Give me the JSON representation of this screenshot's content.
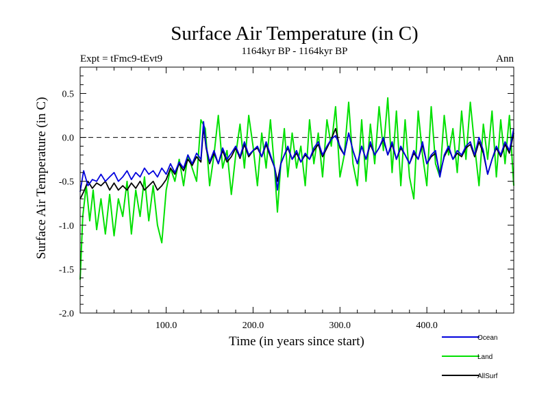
{
  "chart_data": {
    "type": "line",
    "title": "Surface Air Temperature (in C)",
    "subtitle": "1164kyr BP - 1164kyr BP",
    "left_label": "Expt = tFmc9-tEvt9",
    "right_label": "Ann",
    "xlabel": "Time (in years since start)",
    "ylabel": "Surface Air Temperature (in C)",
    "xlim": [
      1,
      500
    ],
    "ylim": [
      -2.0,
      0.8
    ],
    "x_ticks": [
      100,
      200,
      300,
      400
    ],
    "x_tick_labels": [
      "100.0",
      "200.0",
      "300.0",
      "400.0"
    ],
    "y_ticks": [
      -2.0,
      -1.5,
      -1.0,
      -0.5,
      0.0,
      0.5
    ],
    "y_tick_labels": [
      "-2.0",
      "-1.5",
      "-1.0",
      "-0.5",
      "0.0",
      "0.5"
    ],
    "reference_line": 0.0,
    "legend_position": "bottom-right",
    "series": [
      {
        "name": "Ocean",
        "color": "#0000dd",
        "points": [
          [
            1,
            -0.62
          ],
          [
            5,
            -0.38
          ],
          [
            10,
            -0.55
          ],
          [
            15,
            -0.48
          ],
          [
            20,
            -0.5
          ],
          [
            25,
            -0.42
          ],
          [
            30,
            -0.5
          ],
          [
            35,
            -0.45
          ],
          [
            40,
            -0.4
          ],
          [
            45,
            -0.5
          ],
          [
            50,
            -0.45
          ],
          [
            55,
            -0.38
          ],
          [
            60,
            -0.48
          ],
          [
            65,
            -0.4
          ],
          [
            70,
            -0.45
          ],
          [
            75,
            -0.35
          ],
          [
            80,
            -0.42
          ],
          [
            85,
            -0.38
          ],
          [
            90,
            -0.45
          ],
          [
            95,
            -0.35
          ],
          [
            100,
            -0.42
          ],
          [
            105,
            -0.3
          ],
          [
            110,
            -0.4
          ],
          [
            115,
            -0.28
          ],
          [
            120,
            -0.35
          ],
          [
            125,
            -0.2
          ],
          [
            130,
            -0.3
          ],
          [
            135,
            -0.18
          ],
          [
            140,
            -0.25
          ],
          [
            143,
            0.18
          ],
          [
            146,
            -0.1
          ],
          [
            150,
            -0.28
          ],
          [
            155,
            -0.15
          ],
          [
            160,
            -0.3
          ],
          [
            165,
            -0.12
          ],
          [
            170,
            -0.25
          ],
          [
            175,
            -0.18
          ],
          [
            180,
            -0.1
          ],
          [
            185,
            -0.22
          ],
          [
            190,
            -0.05
          ],
          [
            195,
            -0.2
          ],
          [
            200,
            -0.15
          ],
          [
            205,
            -0.1
          ],
          [
            210,
            -0.22
          ],
          [
            215,
            -0.05
          ],
          [
            220,
            -0.2
          ],
          [
            225,
            -0.35
          ],
          [
            228,
            -0.6
          ],
          [
            232,
            -0.3
          ],
          [
            236,
            -0.2
          ],
          [
            240,
            -0.1
          ],
          [
            245,
            -0.25
          ],
          [
            250,
            -0.15
          ],
          [
            255,
            -0.28
          ],
          [
            260,
            -0.18
          ],
          [
            265,
            -0.25
          ],
          [
            270,
            -0.12
          ],
          [
            275,
            -0.05
          ],
          [
            280,
            -0.2
          ],
          [
            285,
            -0.1
          ],
          [
            290,
            -0.02
          ],
          [
            295,
            0.02
          ],
          [
            300,
            -0.1
          ],
          [
            305,
            -0.2
          ],
          [
            310,
            0.05
          ],
          [
            315,
            -0.15
          ],
          [
            320,
            -0.3
          ],
          [
            325,
            -0.1
          ],
          [
            330,
            -0.25
          ],
          [
            335,
            -0.05
          ],
          [
            340,
            -0.2
          ],
          [
            345,
            -0.12
          ],
          [
            350,
            0.0
          ],
          [
            355,
            -0.2
          ],
          [
            360,
            -0.05
          ],
          [
            365,
            -0.25
          ],
          [
            370,
            -0.1
          ],
          [
            375,
            -0.2
          ],
          [
            380,
            -0.3
          ],
          [
            385,
            -0.15
          ],
          [
            390,
            -0.25
          ],
          [
            395,
            -0.05
          ],
          [
            400,
            -0.3
          ],
          [
            405,
            -0.2
          ],
          [
            410,
            -0.15
          ],
          [
            415,
            -0.45
          ],
          [
            420,
            -0.2
          ],
          [
            425,
            -0.1
          ],
          [
            430,
            -0.25
          ],
          [
            435,
            -0.15
          ],
          [
            440,
            -0.2
          ],
          [
            445,
            -0.1
          ],
          [
            450,
            -0.05
          ],
          [
            455,
            -0.2
          ],
          [
            460,
            0.0
          ],
          [
            465,
            -0.15
          ],
          [
            470,
            -0.42
          ],
          [
            475,
            -0.25
          ],
          [
            480,
            -0.1
          ],
          [
            485,
            -0.2
          ],
          [
            490,
            -0.05
          ],
          [
            495,
            -0.15
          ],
          [
            500,
            0.1
          ]
        ]
      },
      {
        "name": "Land",
        "color": "#00e000",
        "points": [
          [
            1,
            -1.62
          ],
          [
            4,
            -0.9
          ],
          [
            8,
            -0.55
          ],
          [
            12,
            -0.95
          ],
          [
            16,
            -0.6
          ],
          [
            20,
            -1.05
          ],
          [
            25,
            -0.7
          ],
          [
            30,
            -1.1
          ],
          [
            35,
            -0.65
          ],
          [
            40,
            -1.12
          ],
          [
            45,
            -0.7
          ],
          [
            50,
            -0.9
          ],
          [
            55,
            -0.5
          ],
          [
            60,
            -1.1
          ],
          [
            65,
            -0.6
          ],
          [
            70,
            -0.9
          ],
          [
            75,
            -0.45
          ],
          [
            80,
            -0.95
          ],
          [
            85,
            -0.55
          ],
          [
            90,
            -1.0
          ],
          [
            95,
            -1.2
          ],
          [
            100,
            -0.6
          ],
          [
            105,
            -0.35
          ],
          [
            110,
            -0.5
          ],
          [
            115,
            -0.25
          ],
          [
            120,
            -0.55
          ],
          [
            125,
            -0.2
          ],
          [
            130,
            -0.35
          ],
          [
            135,
            -0.5
          ],
          [
            140,
            0.2
          ],
          [
            145,
            0.1
          ],
          [
            150,
            -0.55
          ],
          [
            155,
            -0.2
          ],
          [
            160,
            0.25
          ],
          [
            165,
            -0.35
          ],
          [
            170,
            -0.15
          ],
          [
            175,
            -0.65
          ],
          [
            180,
            -0.2
          ],
          [
            185,
            0.15
          ],
          [
            190,
            -0.35
          ],
          [
            195,
            0.25
          ],
          [
            200,
            -0.1
          ],
          [
            205,
            -0.55
          ],
          [
            210,
            0.05
          ],
          [
            215,
            -0.35
          ],
          [
            220,
            0.2
          ],
          [
            225,
            -0.4
          ],
          [
            228,
            -0.85
          ],
          [
            232,
            -0.3
          ],
          [
            236,
            0.1
          ],
          [
            240,
            -0.45
          ],
          [
            245,
            0.05
          ],
          [
            250,
            -0.35
          ],
          [
            255,
            -0.1
          ],
          [
            260,
            -0.55
          ],
          [
            265,
            0.2
          ],
          [
            270,
            -0.3
          ],
          [
            275,
            0.05
          ],
          [
            280,
            -0.45
          ],
          [
            285,
            0.2
          ],
          [
            290,
            -0.1
          ],
          [
            295,
            0.35
          ],
          [
            300,
            -0.45
          ],
          [
            305,
            -0.2
          ],
          [
            310,
            0.4
          ],
          [
            315,
            -0.3
          ],
          [
            320,
            -0.55
          ],
          [
            325,
            0.2
          ],
          [
            330,
            -0.5
          ],
          [
            335,
            0.15
          ],
          [
            340,
            -0.3
          ],
          [
            345,
            0.35
          ],
          [
            350,
            -0.15
          ],
          [
            355,
            0.45
          ],
          [
            360,
            -0.4
          ],
          [
            365,
            0.3
          ],
          [
            370,
            -0.55
          ],
          [
            375,
            0.2
          ],
          [
            380,
            -0.45
          ],
          [
            385,
            -0.7
          ],
          [
            390,
            0.3
          ],
          [
            395,
            -0.2
          ],
          [
            400,
            -0.55
          ],
          [
            405,
            0.35
          ],
          [
            410,
            -0.3
          ],
          [
            415,
            -0.45
          ],
          [
            420,
            0.25
          ],
          [
            425,
            -0.2
          ],
          [
            430,
            0.1
          ],
          [
            435,
            -0.4
          ],
          [
            440,
            0.3
          ],
          [
            445,
            -0.25
          ],
          [
            450,
            0.4
          ],
          [
            455,
            -0.1
          ],
          [
            460,
            -0.55
          ],
          [
            465,
            0.15
          ],
          [
            470,
            -0.25
          ],
          [
            475,
            0.3
          ],
          [
            480,
            -0.45
          ],
          [
            485,
            0.2
          ],
          [
            490,
            -0.3
          ],
          [
            495,
            0.25
          ],
          [
            500,
            -0.55
          ]
        ]
      },
      {
        "name": "AllSurf",
        "color": "#000000",
        "points": [
          [
            1,
            -0.7
          ],
          [
            5,
            -0.62
          ],
          [
            10,
            -0.5
          ],
          [
            15,
            -0.58
          ],
          [
            20,
            -0.52
          ],
          [
            25,
            -0.55
          ],
          [
            30,
            -0.5
          ],
          [
            35,
            -0.6
          ],
          [
            40,
            -0.52
          ],
          [
            45,
            -0.6
          ],
          [
            50,
            -0.55
          ],
          [
            55,
            -0.6
          ],
          [
            60,
            -0.52
          ],
          [
            65,
            -0.58
          ],
          [
            70,
            -0.5
          ],
          [
            75,
            -0.6
          ],
          [
            80,
            -0.55
          ],
          [
            85,
            -0.5
          ],
          [
            90,
            -0.6
          ],
          [
            95,
            -0.55
          ],
          [
            100,
            -0.48
          ],
          [
            105,
            -0.35
          ],
          [
            110,
            -0.42
          ],
          [
            115,
            -0.3
          ],
          [
            120,
            -0.38
          ],
          [
            125,
            -0.25
          ],
          [
            130,
            -0.32
          ],
          [
            135,
            -0.22
          ],
          [
            140,
            -0.28
          ],
          [
            143,
            0.12
          ],
          [
            146,
            -0.12
          ],
          [
            150,
            -0.3
          ],
          [
            155,
            -0.18
          ],
          [
            160,
            -0.3
          ],
          [
            165,
            -0.15
          ],
          [
            170,
            -0.28
          ],
          [
            175,
            -0.22
          ],
          [
            180,
            -0.12
          ],
          [
            185,
            -0.24
          ],
          [
            190,
            -0.08
          ],
          [
            195,
            -0.22
          ],
          [
            200,
            -0.15
          ],
          [
            205,
            -0.12
          ],
          [
            210,
            -0.22
          ],
          [
            215,
            -0.08
          ],
          [
            220,
            -0.22
          ],
          [
            225,
            -0.35
          ],
          [
            228,
            -0.5
          ],
          [
            232,
            -0.3
          ],
          [
            236,
            -0.2
          ],
          [
            240,
            -0.12
          ],
          [
            245,
            -0.25
          ],
          [
            250,
            -0.18
          ],
          [
            255,
            -0.28
          ],
          [
            260,
            -0.2
          ],
          [
            265,
            -0.25
          ],
          [
            270,
            -0.15
          ],
          [
            275,
            -0.08
          ],
          [
            280,
            -0.22
          ],
          [
            285,
            -0.12
          ],
          [
            290,
            -0.02
          ],
          [
            295,
            0.1
          ],
          [
            300,
            -0.12
          ],
          [
            305,
            -0.2
          ],
          [
            310,
            0.05
          ],
          [
            315,
            -0.15
          ],
          [
            320,
            -0.3
          ],
          [
            325,
            -0.1
          ],
          [
            330,
            -0.25
          ],
          [
            335,
            -0.08
          ],
          [
            340,
            -0.2
          ],
          [
            345,
            -0.12
          ],
          [
            350,
            -0.02
          ],
          [
            355,
            -0.2
          ],
          [
            360,
            -0.08
          ],
          [
            365,
            -0.25
          ],
          [
            370,
            -0.12
          ],
          [
            375,
            -0.2
          ],
          [
            380,
            -0.3
          ],
          [
            385,
            -0.18
          ],
          [
            390,
            -0.25
          ],
          [
            395,
            -0.08
          ],
          [
            400,
            -0.3
          ],
          [
            405,
            -0.22
          ],
          [
            410,
            -0.18
          ],
          [
            415,
            -0.42
          ],
          [
            420,
            -0.22
          ],
          [
            425,
            -0.12
          ],
          [
            430,
            -0.25
          ],
          [
            435,
            -0.18
          ],
          [
            440,
            -0.22
          ],
          [
            445,
            -0.12
          ],
          [
            450,
            -0.08
          ],
          [
            455,
            -0.22
          ],
          [
            460,
            -0.05
          ],
          [
            465,
            -0.18
          ],
          [
            470,
            -0.42
          ],
          [
            475,
            -0.25
          ],
          [
            480,
            -0.12
          ],
          [
            485,
            -0.22
          ],
          [
            490,
            -0.08
          ],
          [
            495,
            -0.18
          ],
          [
            500,
            0.05
          ]
        ]
      }
    ]
  }
}
